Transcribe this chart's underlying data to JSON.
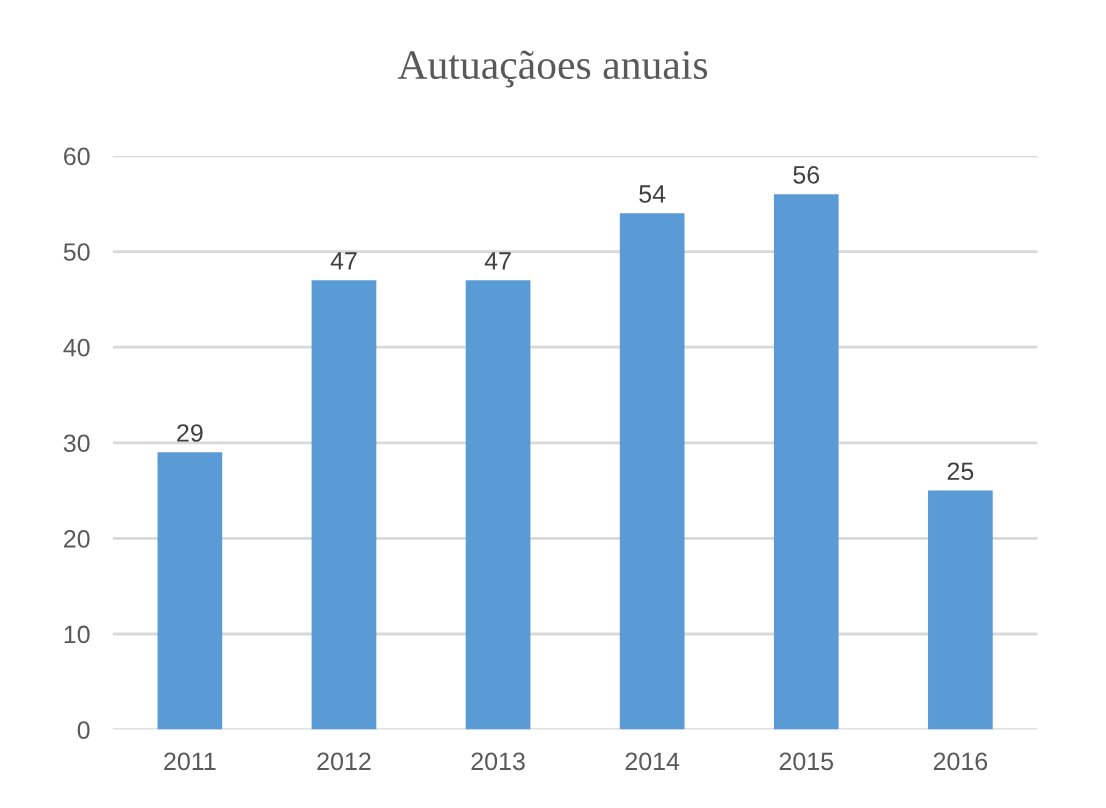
{
  "chart_data": {
    "type": "bar",
    "title": "Autuaçãoes anuais",
    "categories": [
      "2011",
      "2012",
      "2013",
      "2014",
      "2015",
      "2016"
    ],
    "values": [
      29,
      47,
      47,
      54,
      56,
      25
    ],
    "color": "#5b9bd5",
    "ylim": [
      0,
      60
    ],
    "yticks": [
      0,
      10,
      20,
      30,
      40,
      50,
      60
    ],
    "grid": "y",
    "data_labels": true
  }
}
